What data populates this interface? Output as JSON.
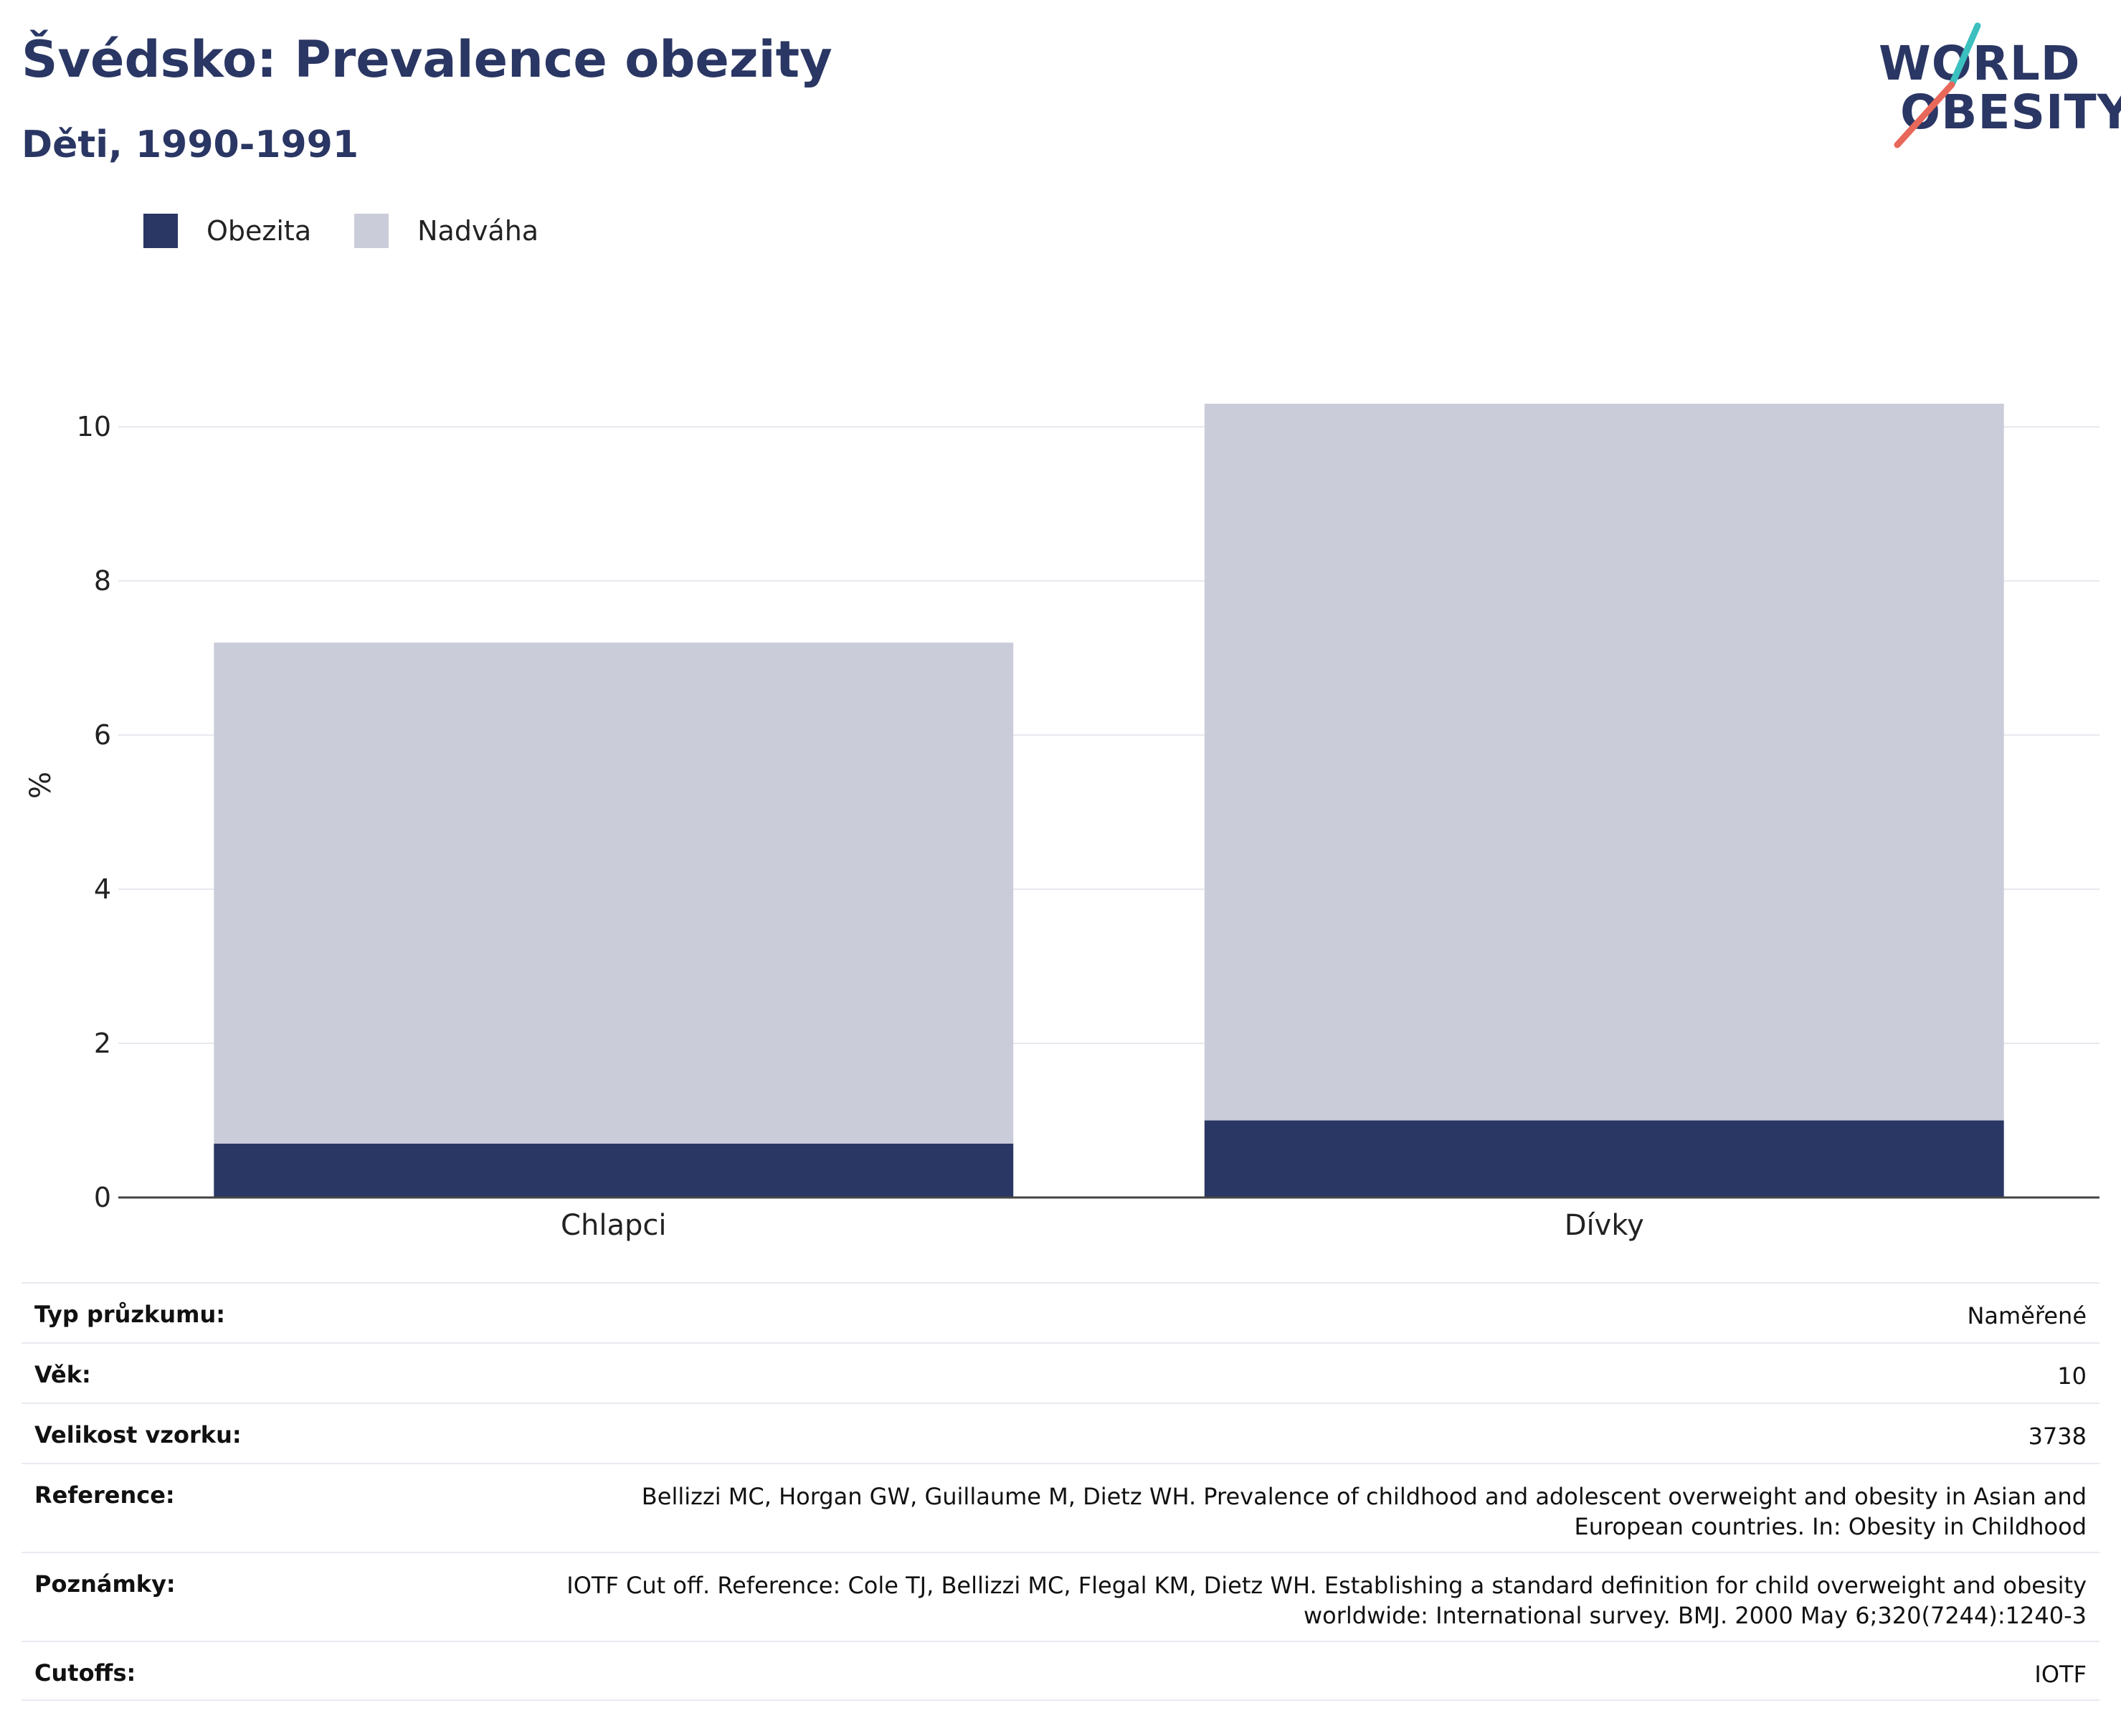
{
  "header": {
    "title": "Švédsko: Prevalence obezity",
    "subtitle": "Děti, 1990-1991"
  },
  "logo": {
    "line1": "WORLD",
    "line2": "OBESITY"
  },
  "colors": {
    "obesity": "#2a3663",
    "overweight": "#cacdd9",
    "accent_teal": "#3cbfbf",
    "accent_red": "#e8685a"
  },
  "chart_data": {
    "type": "bar",
    "stacked": true,
    "categories": [
      "Chlapci",
      "Dívky"
    ],
    "series": [
      {
        "name": "Obezita",
        "values": [
          0.7,
          1.0
        ]
      },
      {
        "name": "Nadváha",
        "values": [
          6.5,
          9.3
        ]
      }
    ],
    "ylabel": "%",
    "xlabel": "",
    "ylim": [
      0,
      10.7
    ],
    "yticks": [
      "0",
      "2",
      "4",
      "6",
      "8",
      "10"
    ],
    "grid": true,
    "legend": "top-left"
  },
  "info": [
    {
      "key": "Typ průzkumu:",
      "lines": [
        "Naměřené"
      ]
    },
    {
      "key": "Věk:",
      "lines": [
        "10"
      ]
    },
    {
      "key": "Velikost vzorku:",
      "lines": [
        "3738"
      ]
    },
    {
      "key": "Reference:",
      "lines": [
        "Bellizzi MC, Horgan GW, Guillaume M, Dietz WH. Prevalence of childhood and adolescent overweight and obesity in Asian and",
        "European countries. In: Obesity in Childhood"
      ]
    },
    {
      "key": "Poznámky:",
      "lines": [
        "IOTF Cut off. Reference: Cole TJ, Bellizzi MC, Flegal KM, Dietz WH. Establishing a standard definition for child overweight and obesity",
        "worldwide: International survey. BMJ. 2000 May 6;320(7244):1240-3"
      ]
    },
    {
      "key": "Cutoffs:",
      "lines": [
        "IOTF"
      ]
    }
  ]
}
